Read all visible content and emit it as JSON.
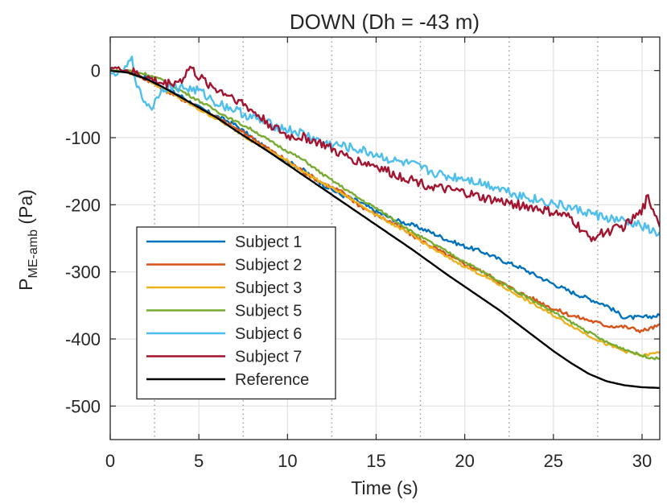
{
  "chart_data": {
    "type": "line",
    "title": "DOWN (Dh = -43 m)",
    "xlabel": "Time (s)",
    "ylabel": {
      "main": "P",
      "subscript": "ME-amb",
      "unit": " (Pa)"
    },
    "xlim": [
      0,
      31
    ],
    "ylim": [
      -550,
      50
    ],
    "xticks": [
      0,
      5,
      10,
      15,
      20,
      25,
      30
    ],
    "yticks": [
      -500,
      -400,
      -300,
      -200,
      -100,
      0
    ],
    "vlines_dotted": [
      2.5,
      7.5,
      12.5,
      17.5,
      22.5,
      27.5
    ],
    "grid": true,
    "legend_position": "lower-left",
    "series": [
      {
        "name": "Subject 1",
        "color": "#0072BD",
        "noise": 3,
        "x": [
          0,
          1,
          2,
          3,
          4,
          5,
          6,
          7,
          8,
          9,
          10,
          11,
          12,
          13,
          14,
          15,
          16,
          17,
          18,
          19,
          20,
          21,
          22,
          23,
          24,
          25,
          26,
          27,
          28,
          29,
          30,
          31
        ],
        "y": [
          0,
          -2,
          -10,
          -25,
          -38,
          -55,
          -68,
          -80,
          -100,
          -120,
          -135,
          -150,
          -170,
          -185,
          -195,
          -210,
          -222,
          -230,
          -240,
          -252,
          -262,
          -270,
          -282,
          -292,
          -305,
          -318,
          -330,
          -340,
          -350,
          -368,
          -368,
          -365
        ]
      },
      {
        "name": "Subject 2",
        "color": "#D95319",
        "noise": 3,
        "x": [
          0,
          1,
          2,
          3,
          4,
          5,
          6,
          7,
          8,
          9,
          10,
          11,
          12,
          13,
          14,
          15,
          16,
          17,
          18,
          19,
          20,
          21,
          22,
          23,
          24,
          25,
          26,
          27,
          28,
          29,
          30,
          31
        ],
        "y": [
          0,
          -2,
          -12,
          -28,
          -42,
          -55,
          -70,
          -85,
          -100,
          -118,
          -135,
          -152,
          -168,
          -180,
          -200,
          -215,
          -228,
          -245,
          -260,
          -275,
          -288,
          -300,
          -315,
          -330,
          -342,
          -355,
          -365,
          -372,
          -380,
          -382,
          -388,
          -380
        ]
      },
      {
        "name": "Subject 3",
        "color": "#EDB120",
        "noise": 2,
        "x": [
          0,
          1,
          2,
          3,
          4,
          5,
          6,
          7,
          8,
          9,
          10,
          11,
          12,
          13,
          14,
          15,
          16,
          17,
          18,
          19,
          20,
          21,
          22,
          23,
          24,
          25,
          26,
          27,
          28,
          29,
          30,
          31
        ],
        "y": [
          0,
          -2,
          -12,
          -28,
          -42,
          -58,
          -72,
          -88,
          -105,
          -120,
          -135,
          -152,
          -168,
          -182,
          -198,
          -215,
          -230,
          -245,
          -262,
          -278,
          -292,
          -305,
          -320,
          -335,
          -350,
          -365,
          -380,
          -395,
          -408,
          -418,
          -425,
          -420
        ]
      },
      {
        "name": "Subject 5",
        "color": "#77AC30",
        "noise": 2,
        "x": [
          0,
          1,
          2,
          3,
          4,
          5,
          6,
          7,
          8,
          9,
          10,
          11,
          12,
          13,
          14,
          15,
          16,
          17,
          18,
          19,
          20,
          21,
          22,
          23,
          24,
          25,
          26,
          27,
          28,
          29,
          30,
          31
        ],
        "y": [
          0,
          0,
          -5,
          -15,
          -30,
          -45,
          -60,
          -75,
          -88,
          -105,
          -120,
          -135,
          -155,
          -172,
          -190,
          -205,
          -222,
          -240,
          -255,
          -270,
          -285,
          -300,
          -315,
          -330,
          -345,
          -360,
          -375,
          -390,
          -405,
          -415,
          -425,
          -430
        ]
      },
      {
        "name": "Subject 6",
        "color": "#4DBEEE",
        "noise": 7,
        "x": [
          0,
          0.5,
          1,
          1.2,
          1.6,
          2,
          2.4,
          2.7,
          3,
          4,
          5,
          6,
          7,
          8,
          9,
          10,
          11,
          12,
          13,
          14,
          15,
          16,
          17,
          18,
          19,
          20,
          21,
          22,
          23,
          24,
          25,
          26,
          27,
          28,
          29,
          30,
          31
        ],
        "y": [
          -5,
          -5,
          8,
          18,
          -30,
          -48,
          -55,
          -35,
          -25,
          -25,
          -30,
          -48,
          -58,
          -70,
          -80,
          -88,
          -95,
          -108,
          -112,
          -118,
          -125,
          -135,
          -140,
          -150,
          -158,
          -160,
          -168,
          -175,
          -185,
          -192,
          -198,
          -205,
          -212,
          -220,
          -225,
          -232,
          -245
        ]
      },
      {
        "name": "Subject 7",
        "color": "#A2142F",
        "noise": 7,
        "x": [
          0,
          1,
          2,
          3,
          4,
          4.5,
          5,
          6,
          7,
          8,
          9,
          10,
          11,
          12,
          13,
          14,
          15,
          16,
          17,
          18,
          19,
          20,
          21,
          22,
          23,
          24,
          25,
          26,
          27,
          28,
          29,
          30,
          30.3,
          31
        ],
        "y": [
          5,
          0,
          -10,
          -20,
          -15,
          5,
          -10,
          -28,
          -40,
          -60,
          -80,
          -98,
          -100,
          -110,
          -125,
          -135,
          -142,
          -155,
          -162,
          -172,
          -178,
          -182,
          -190,
          -195,
          -200,
          -205,
          -212,
          -220,
          -250,
          -240,
          -232,
          -210,
          -188,
          -228
        ]
      },
      {
        "name": "Reference",
        "color": "#000000",
        "noise": 0,
        "x": [
          0,
          1,
          2,
          3,
          4,
          5,
          6,
          7,
          8,
          9,
          10,
          11,
          12,
          13,
          14,
          15,
          16,
          17,
          18,
          19,
          20,
          21,
          22,
          23,
          24,
          25,
          26,
          27,
          28,
          29,
          30,
          31
        ],
        "y": [
          0,
          -3,
          -12,
          -25,
          -40,
          -55,
          -70,
          -88,
          -105,
          -122,
          -140,
          -158,
          -176,
          -194,
          -212,
          -230,
          -248,
          -266,
          -285,
          -304,
          -322,
          -340,
          -358,
          -378,
          -398,
          -418,
          -436,
          -452,
          -463,
          -469,
          -472,
          -473
        ]
      }
    ]
  }
}
